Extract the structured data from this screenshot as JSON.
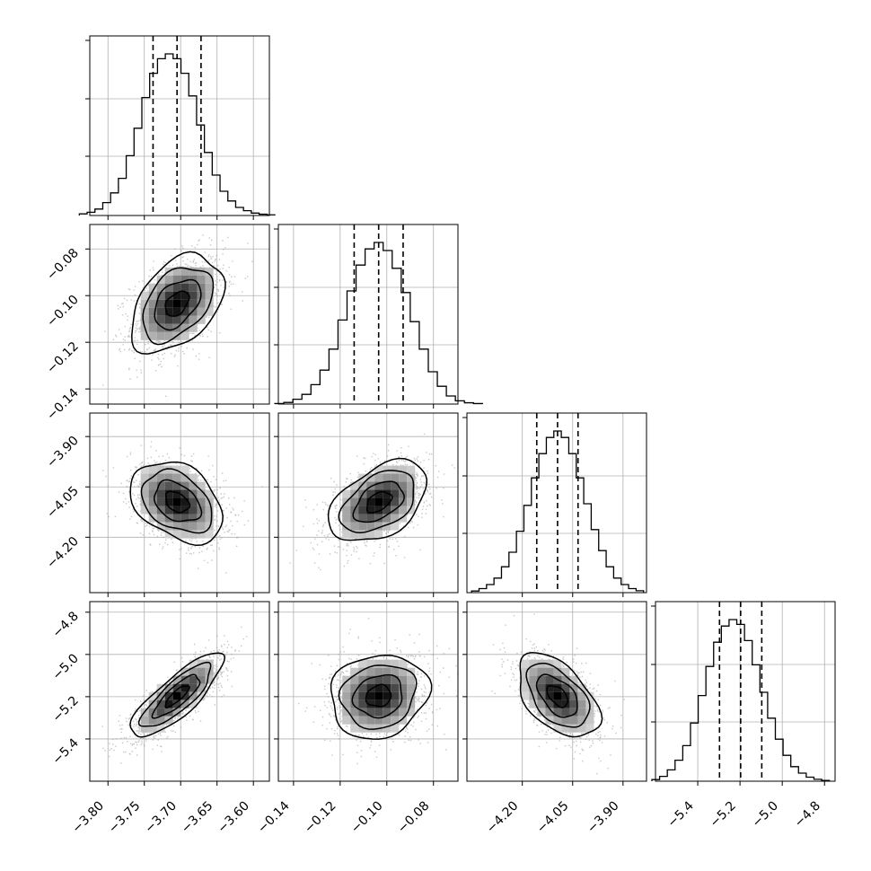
{
  "chart_data": {
    "type": "corner",
    "title": "",
    "grid": true,
    "quantiles": [
      0.16,
      0.5,
      0.84
    ],
    "contour_levels": [
      0.12,
      0.39,
      0.68,
      0.86
    ],
    "parameters": [
      {
        "mean": -3.705,
        "sd": 0.032,
        "lim": [
          -3.825,
          -3.578
        ],
        "ticks": [
          -3.8,
          -3.75,
          -3.7,
          -3.65,
          -3.6
        ],
        "tick_labels": [
          "−3.80",
          "−3.75",
          "−3.70",
          "−3.65",
          "−3.60"
        ],
        "quantile_values": [
          -3.738,
          -3.705,
          -3.672
        ],
        "hist": [
          0.01,
          0.02,
          0.04,
          0.08,
          0.14,
          0.23,
          0.37,
          0.54,
          0.73,
          0.88,
          0.97,
          1.0,
          0.97,
          0.88,
          0.74,
          0.56,
          0.39,
          0.25,
          0.15,
          0.09,
          0.05,
          0.03,
          0.015,
          0.008,
          0.004
        ]
      },
      {
        "mean": -0.1035,
        "sd": 0.0106,
        "lim": [
          -0.1465,
          -0.0695
        ],
        "ticks": [
          -0.14,
          -0.12,
          -0.1,
          -0.08
        ],
        "tick_labels": [
          "−0.14",
          "−0.12",
          "−0.10",
          "−0.08"
        ],
        "quantile_values": [
          -0.114,
          -0.1035,
          -0.093
        ],
        "hist": [
          0.003,
          0.01,
          0.03,
          0.06,
          0.12,
          0.21,
          0.34,
          0.52,
          0.7,
          0.86,
          0.96,
          1.0,
          0.95,
          0.84,
          0.69,
          0.51,
          0.34,
          0.2,
          0.11,
          0.05,
          0.02,
          0.008,
          0.003
        ]
      },
      {
        "mean": -4.095,
        "sd": 0.061,
        "lim": [
          -4.365,
          -3.83
        ],
        "ticks": [
          -4.2,
          -4.05,
          -3.9
        ],
        "tick_labels": [
          "−4.20",
          "−4.05",
          "−3.90"
        ],
        "quantile_values": [
          -4.157,
          -4.095,
          -4.034
        ],
        "hist": [
          0.01,
          0.025,
          0.05,
          0.09,
          0.16,
          0.25,
          0.38,
          0.54,
          0.71,
          0.86,
          0.96,
          1.0,
          0.96,
          0.86,
          0.71,
          0.55,
          0.39,
          0.26,
          0.16,
          0.09,
          0.05,
          0.025,
          0.012
        ]
      },
      {
        "mean": -5.197,
        "sd": 0.1,
        "lim": [
          -5.6,
          -4.75
        ],
        "ticks": [
          -5.4,
          -5.2,
          -5.0,
          -4.8
        ],
        "tick_labels": [
          "−5.4",
          "−5.2",
          "−5.0",
          "−4.8"
        ],
        "quantile_values": [
          -5.297,
          -5.197,
          -5.097
        ],
        "hist": [
          0.01,
          0.03,
          0.07,
          0.13,
          0.22,
          0.36,
          0.53,
          0.71,
          0.86,
          0.96,
          1.0,
          0.97,
          0.87,
          0.72,
          0.55,
          0.39,
          0.26,
          0.16,
          0.09,
          0.05,
          0.025,
          0.012,
          0.005
        ]
      }
    ],
    "pairs": [
      {
        "row": 1,
        "col": 0,
        "rho": 0.42
      },
      {
        "row": 2,
        "col": 0,
        "rho": -0.35
      },
      {
        "row": 2,
        "col": 1,
        "rho": 0.45
      },
      {
        "row": 3,
        "col": 0,
        "rho": 0.82
      },
      {
        "row": 3,
        "col": 1,
        "rho": 0.12
      },
      {
        "row": 3,
        "col": 2,
        "rho": -0.5
      }
    ]
  }
}
